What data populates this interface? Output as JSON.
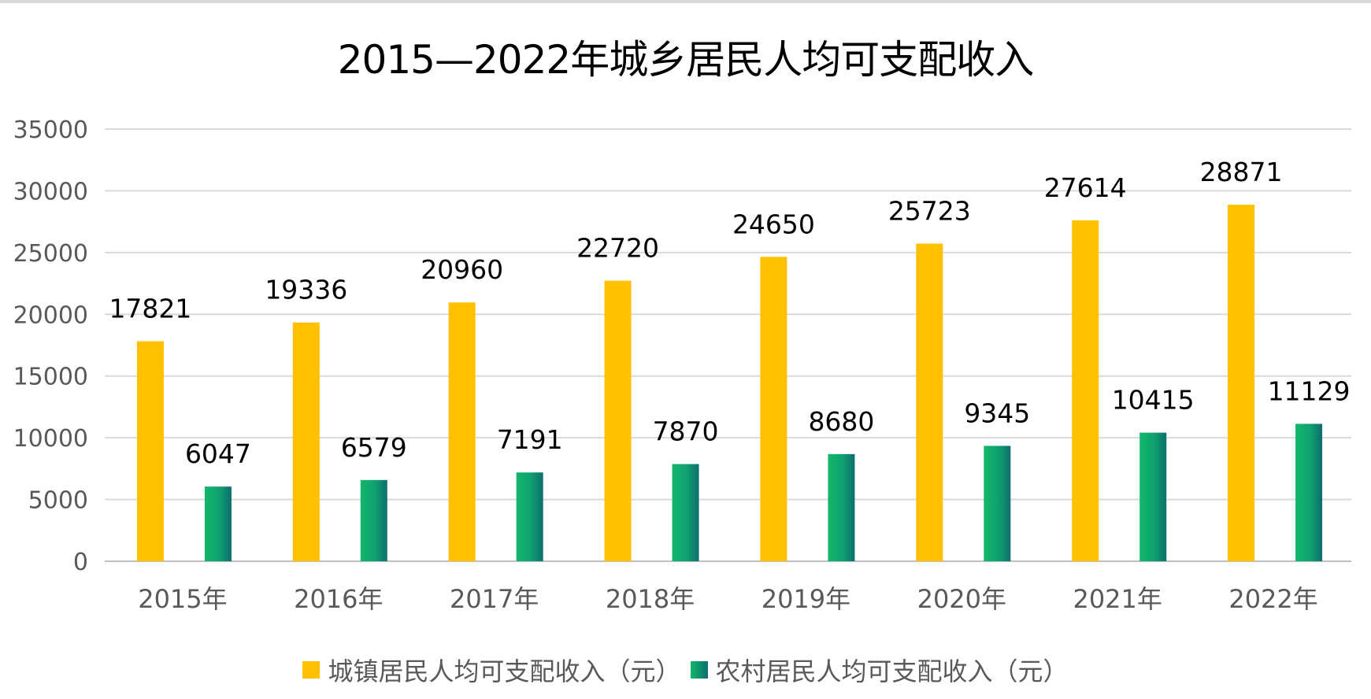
{
  "chart_data": {
    "type": "bar",
    "title": "2015—2022年城乡居民人均可支配收入",
    "categories": [
      "2015年",
      "2016年",
      "2017年",
      "2018年",
      "2019年",
      "2020年",
      "2021年",
      "2022年"
    ],
    "series": [
      {
        "name": "城镇居民人均可支配收入（元）",
        "values": [
          17821,
          19336,
          20960,
          22720,
          24650,
          25723,
          27614,
          28871
        ],
        "color": "#FFC000"
      },
      {
        "name": "农村居民人均可支配收入（元）",
        "values": [
          6047,
          6579,
          7191,
          7870,
          8680,
          9345,
          10415,
          11129
        ],
        "color": "#12B76A"
      }
    ],
    "ylim": [
      0,
      35000
    ],
    "yticks": [
      0,
      5000,
      10000,
      15000,
      20000,
      25000,
      30000,
      35000
    ],
    "xlabel": "",
    "ylabel": "",
    "grid": true,
    "legend_position": "bottom"
  }
}
